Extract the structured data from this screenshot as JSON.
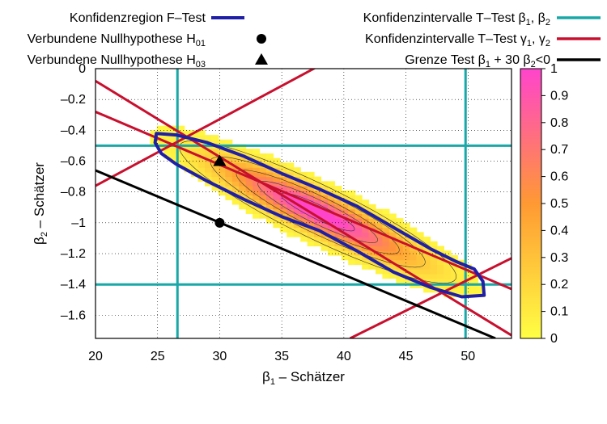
{
  "chart_data": {
    "type": "heatmap",
    "xlabel": {
      "main": "β",
      "sub": "1",
      "rest": " – Schätzer"
    },
    "ylabel": {
      "main": "β",
      "sub": "2",
      "rest": " – Schätzer"
    },
    "xlim": [
      20,
      53.5
    ],
    "ylim": [
      -1.75,
      0
    ],
    "xticks": [
      "20",
      "25",
      "30",
      "35",
      "40",
      "45",
      "50"
    ],
    "xtick_values": [
      20,
      25,
      30,
      35,
      40,
      45,
      50
    ],
    "yticks": [
      "0",
      "–0.2",
      "–0.4",
      "–0.6",
      "–0.8",
      "–1",
      "–1.2",
      "–1.4",
      "–1.6"
    ],
    "ytick_values": [
      0,
      -0.2,
      -0.4,
      -0.6,
      -0.8,
      -1,
      -1.2,
      -1.4,
      -1.6
    ],
    "grid": true,
    "colorbar": {
      "range": [
        0,
        1
      ],
      "ticks": [
        "0",
        "0.1",
        "0.2",
        "0.3",
        "0.4",
        "0.5",
        "0.6",
        "0.7",
        "0.8",
        "0.9",
        "1"
      ],
      "tick_values": [
        0,
        0.1,
        0.2,
        0.3,
        0.4,
        0.5,
        0.6,
        0.7,
        0.8,
        0.9,
        1
      ],
      "colors": [
        "#ffff44",
        "#ff9933",
        "#ff44cc"
      ]
    },
    "density": {
      "center": [
        37.9,
        -0.93
      ],
      "major_axis_direction": [
        1,
        -0.0376
      ],
      "major_sd": 5.2,
      "minor_sd": 0.09
    },
    "confidence_region_F": {
      "color": "#1f1fa8",
      "boundary": [
        [
          24.9,
          -0.42
        ],
        [
          26.5,
          -0.43
        ],
        [
          29,
          -0.48
        ],
        [
          32,
          -0.57
        ],
        [
          35,
          -0.68
        ],
        [
          38,
          -0.78
        ],
        [
          41,
          -0.89
        ],
        [
          44,
          -1.03
        ],
        [
          47,
          -1.17
        ],
        [
          49,
          -1.25
        ],
        [
          50.5,
          -1.3
        ],
        [
          51.2,
          -1.38
        ],
        [
          51.3,
          -1.47
        ],
        [
          49.5,
          -1.48
        ],
        [
          47,
          -1.42
        ],
        [
          44,
          -1.32
        ],
        [
          41,
          -1.18
        ],
        [
          38,
          -1.05
        ],
        [
          35,
          -0.96
        ],
        [
          32,
          -0.85
        ],
        [
          29,
          -0.73
        ],
        [
          26.5,
          -0.62
        ],
        [
          25.3,
          -0.55
        ],
        [
          24.8,
          -0.48
        ]
      ]
    },
    "ci_beta": {
      "color": "#1aa7a7",
      "x": [
        26.6,
        49.8
      ],
      "y": [
        -0.5,
        -1.4
      ]
    },
    "ci_gamma": {
      "color": "#c8102e",
      "lines": [
        {
          "x": [
            20,
            53.5
          ],
          "y": [
            -0.08,
            -1.73
          ]
        },
        {
          "x": [
            20,
            53.5
          ],
          "y": [
            -0.28,
            -1.43
          ]
        },
        {
          "x": [
            20,
            38.5
          ],
          "y": [
            -0.76,
            0.04
          ]
        },
        {
          "x": [
            40.5,
            53.5
          ],
          "y": [
            -1.75,
            -1.23
          ]
        }
      ]
    },
    "boundary_test": {
      "color": "#000000",
      "x": [
        20,
        52.2
      ],
      "y": [
        -0.66,
        -1.75
      ]
    },
    "null_h01": {
      "x": 30,
      "y": -1.0
    },
    "null_h03": {
      "x": 30,
      "y": -0.6
    },
    "legend_left": [
      {
        "key": "F",
        "label": "Konfidenzregion F–Test",
        "sub": "",
        "tail": ""
      },
      {
        "key": "H01",
        "label": "Verbundene Nullhypothese H",
        "sub": "01",
        "tail": ""
      },
      {
        "key": "H03",
        "label": "Verbundene Nullhypothese H",
        "sub": "03",
        "tail": ""
      }
    ],
    "legend_right": [
      {
        "key": "ciB",
        "parts": [
          [
            "Konfidenzintervalle T–Test β",
            ""
          ],
          [
            "1",
            "sub"
          ],
          [
            ", β",
            ""
          ],
          [
            "2",
            "sub"
          ]
        ]
      },
      {
        "key": "ciG",
        "parts": [
          [
            "Konfidenzintervalle T–Test γ",
            ""
          ],
          [
            "1",
            "sub"
          ],
          [
            ", γ",
            ""
          ],
          [
            "2",
            "sub"
          ]
        ]
      },
      {
        "key": "bd",
        "parts": [
          [
            "Grenze Test β",
            ""
          ],
          [
            "1",
            "sub"
          ],
          [
            " + 30 β",
            ""
          ],
          [
            "2",
            "sub"
          ],
          [
            "<0",
            ""
          ]
        ]
      }
    ]
  }
}
